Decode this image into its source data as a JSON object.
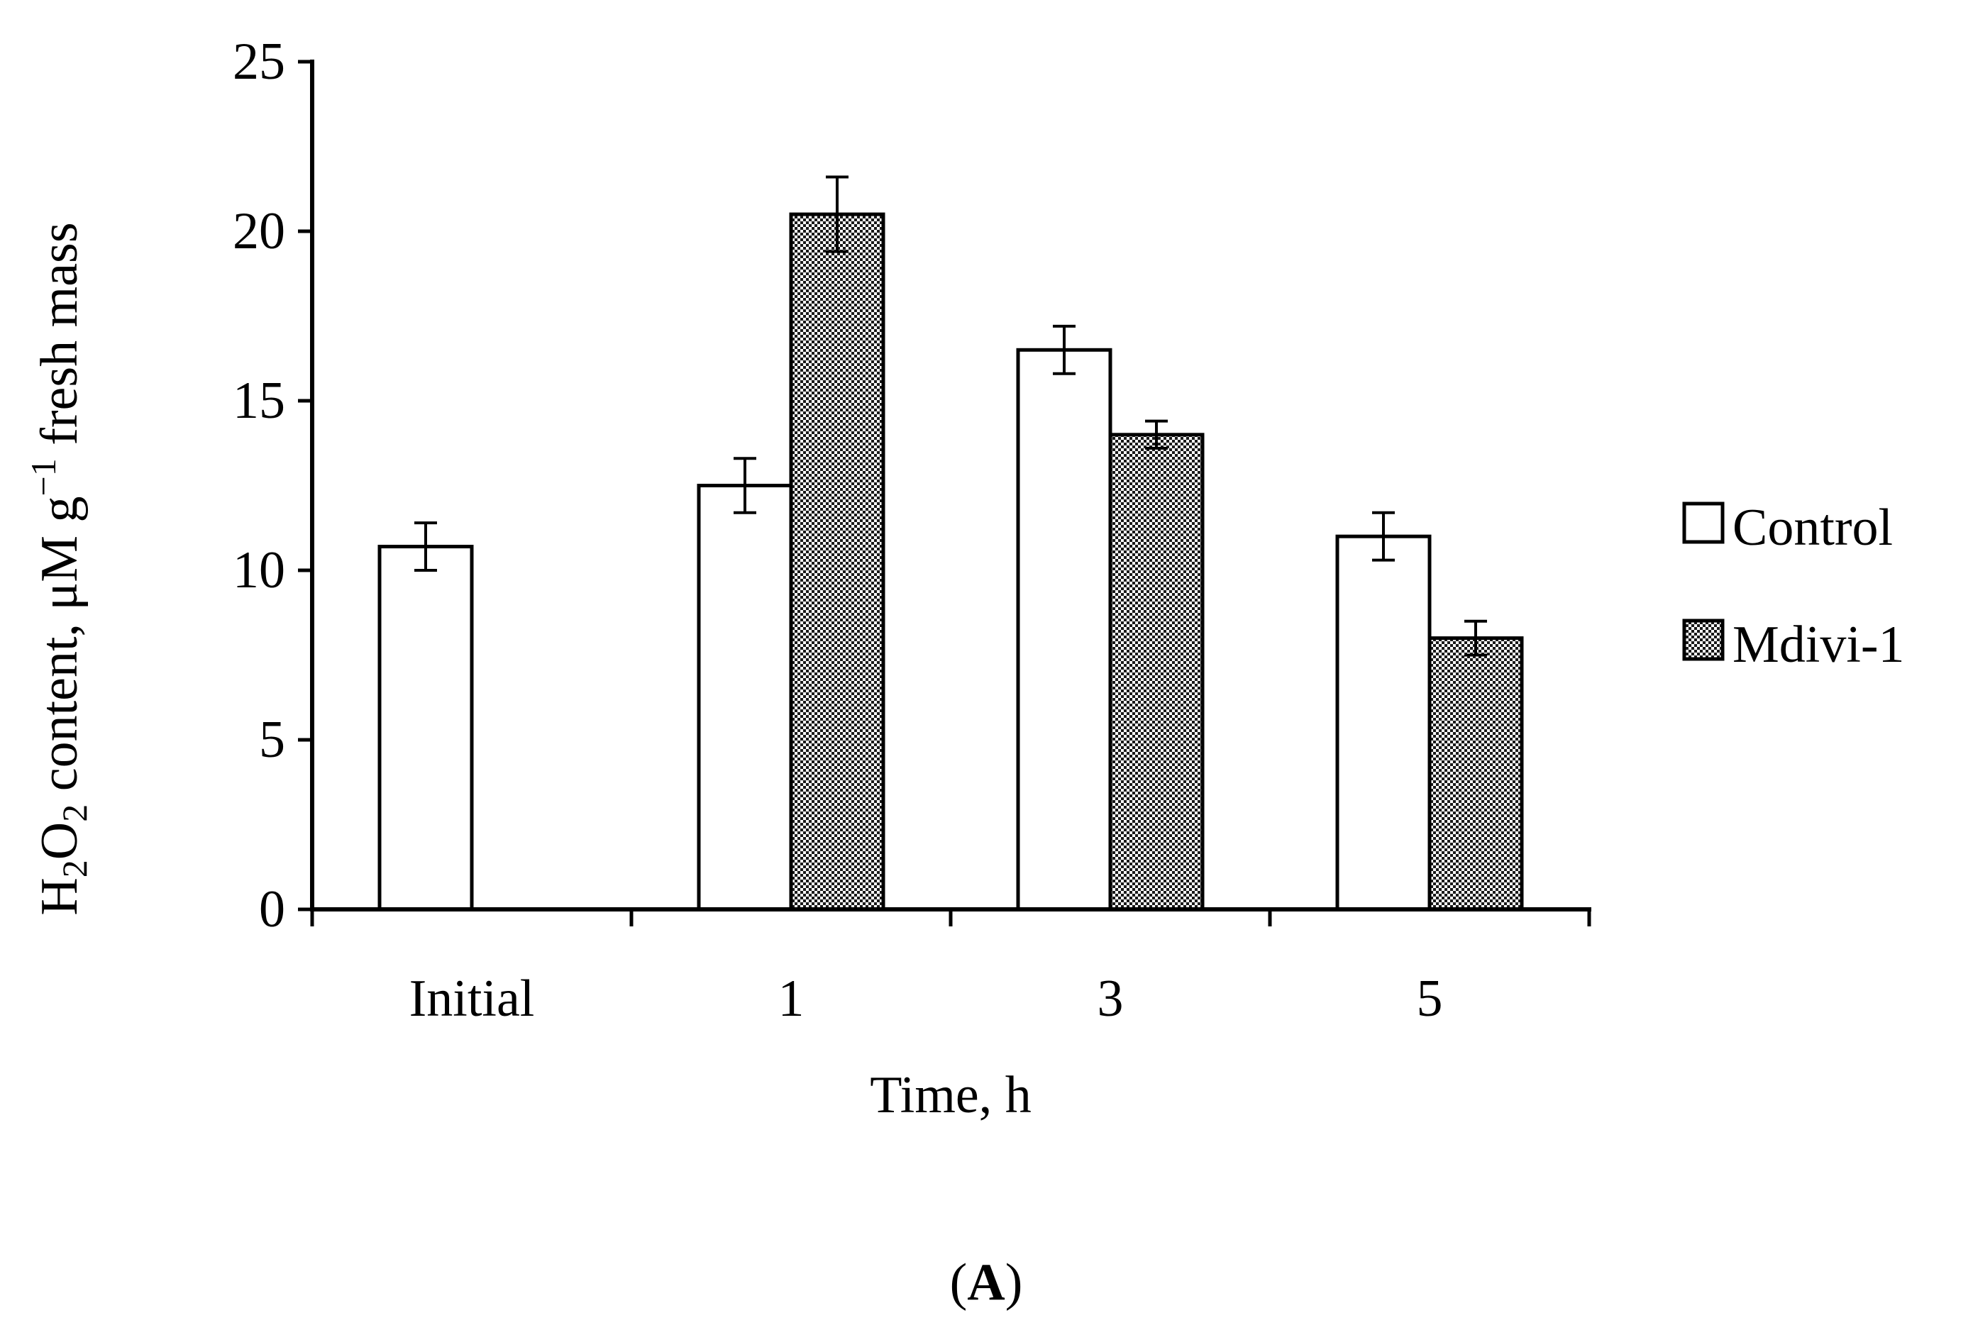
{
  "chart_data": {
    "type": "bar",
    "categories": [
      "Initial",
      "1",
      "3",
      "5"
    ],
    "series": [
      {
        "name": "Control",
        "values": [
          10.7,
          12.5,
          16.5,
          11.0
        ],
        "errors": [
          0.7,
          0.8,
          0.7,
          0.7
        ],
        "pattern": "none"
      },
      {
        "name": "Mdivi-1",
        "values": [
          null,
          20.5,
          14.0,
          8.0
        ],
        "errors": [
          null,
          1.1,
          0.4,
          0.5
        ],
        "pattern": "checkered"
      }
    ],
    "xlabel": "Time, h",
    "ylabel": {
      "main_prefix": "H",
      "sub1": "2",
      "main_mid": "O",
      "sub2": "2",
      "main_rest": " content, μM g",
      "sup": "−1",
      "main_end": " fresh mass"
    },
    "ylim": [
      0,
      25
    ],
    "yticks": [
      0,
      5,
      10,
      15,
      20,
      25
    ],
    "grid": false,
    "legend_position": "right",
    "panel_label": {
      "open": "(",
      "letter": "A",
      "close": ")"
    }
  },
  "colors": {
    "axis": "#000000",
    "control_fill": "#ffffff",
    "pattern_dark": "#1a1a1a",
    "pattern_light": "#ffffff"
  }
}
